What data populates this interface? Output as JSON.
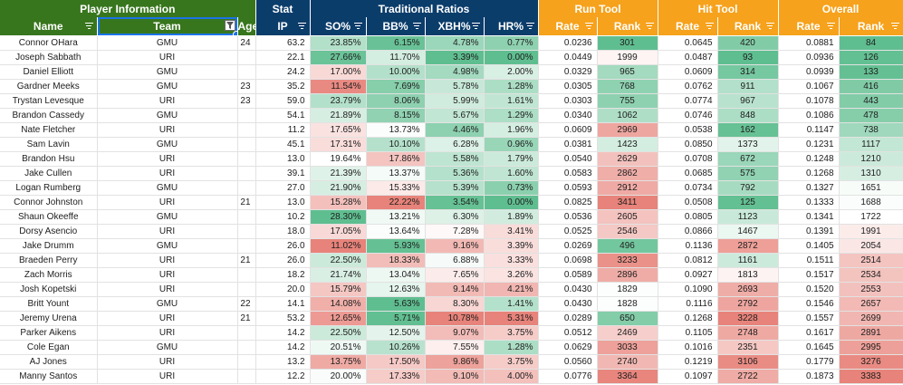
{
  "groups": {
    "player": "Player Information",
    "stat": "Stat",
    "trad": "Traditional Ratios",
    "run": "Run Tool",
    "hit": "Hit Tool",
    "overall": "Overall"
  },
  "columns": [
    "Name",
    "Team",
    "Age",
    "IP",
    "SO%",
    "BB%",
    "XBH%",
    "HR%",
    "Rate",
    "Rank",
    "Rate",
    "Rank",
    "Rate",
    "Rank"
  ],
  "colors": {
    "player_header": "#38761d",
    "stat_header": "#0b3d6b",
    "tool_header": "#f6a21c",
    "good": "#57bb8a",
    "bad": "#e67c73",
    "selection": "#1a73e8"
  },
  "icons": {
    "filter": "filter-icon",
    "active_filter": "active-filter-icon"
  },
  "rows": [
    {
      "name": "Connor OHara",
      "team": "GMU",
      "age": "24",
      "ip": "63.2",
      "so": "23.85%",
      "bb": "6.15%",
      "xbh": "4.78%",
      "hr": "0.77%",
      "run_rate": "0.0236",
      "run_rank": "301",
      "hit_rate": "0.0645",
      "hit_rank": "420",
      "ovr_rate": "0.0881",
      "ovr_rank": "84"
    },
    {
      "name": "Joseph Sabbath",
      "team": "URI",
      "age": "",
      "ip": "22.1",
      "so": "27.66%",
      "bb": "11.70%",
      "xbh": "3.39%",
      "hr": "0.00%",
      "run_rate": "0.0449",
      "run_rank": "1999",
      "hit_rate": "0.0487",
      "hit_rank": "93",
      "ovr_rate": "0.0936",
      "ovr_rank": "126"
    },
    {
      "name": "Daniel Elliott",
      "team": "GMU",
      "age": "",
      "ip": "24.2",
      "so": "17.00%",
      "bb": "10.00%",
      "xbh": "4.98%",
      "hr": "2.00%",
      "run_rate": "0.0329",
      "run_rank": "965",
      "hit_rate": "0.0609",
      "hit_rank": "314",
      "ovr_rate": "0.0939",
      "ovr_rank": "133"
    },
    {
      "name": "Gardner Meeks",
      "team": "GMU",
      "age": "23",
      "ip": "35.2",
      "so": "11.54%",
      "bb": "7.69%",
      "xbh": "5.78%",
      "hr": "1.28%",
      "run_rate": "0.0305",
      "run_rank": "768",
      "hit_rate": "0.0762",
      "hit_rank": "911",
      "ovr_rate": "0.1067",
      "ovr_rank": "416"
    },
    {
      "name": "Trystan Levesque",
      "team": "URI",
      "age": "23",
      "ip": "59.0",
      "so": "23.79%",
      "bb": "8.06%",
      "xbh": "5.99%",
      "hr": "1.61%",
      "run_rate": "0.0303",
      "run_rank": "755",
      "hit_rate": "0.0774",
      "hit_rank": "967",
      "ovr_rate": "0.1078",
      "ovr_rank": "443"
    },
    {
      "name": "Brandon Cassedy",
      "team": "GMU",
      "age": "",
      "ip": "54.1",
      "so": "21.89%",
      "bb": "8.15%",
      "xbh": "5.67%",
      "hr": "1.29%",
      "run_rate": "0.0340",
      "run_rank": "1062",
      "hit_rate": "0.0746",
      "hit_rank": "848",
      "ovr_rate": "0.1086",
      "ovr_rank": "478"
    },
    {
      "name": "Nate Fletcher",
      "team": "URI",
      "age": "",
      "ip": "11.2",
      "so": "17.65%",
      "bb": "13.73%",
      "xbh": "4.46%",
      "hr": "1.96%",
      "run_rate": "0.0609",
      "run_rank": "2969",
      "hit_rate": "0.0538",
      "hit_rank": "162",
      "ovr_rate": "0.1147",
      "ovr_rank": "738"
    },
    {
      "name": "Sam Lavin",
      "team": "GMU",
      "age": "",
      "ip": "45.1",
      "so": "17.31%",
      "bb": "10.10%",
      "xbh": "6.28%",
      "hr": "0.96%",
      "run_rate": "0.0381",
      "run_rank": "1423",
      "hit_rate": "0.0850",
      "hit_rank": "1373",
      "ovr_rate": "0.1231",
      "ovr_rank": "1117"
    },
    {
      "name": "Brandon Hsu",
      "team": "URI",
      "age": "",
      "ip": "13.0",
      "so": "19.64%",
      "bb": "17.86%",
      "xbh": "5.58%",
      "hr": "1.79%",
      "run_rate": "0.0540",
      "run_rank": "2629",
      "hit_rate": "0.0708",
      "hit_rank": "672",
      "ovr_rate": "0.1248",
      "ovr_rank": "1210"
    },
    {
      "name": "Jake Cullen",
      "team": "URI",
      "age": "",
      "ip": "39.1",
      "so": "21.39%",
      "bb": "13.37%",
      "xbh": "5.36%",
      "hr": "1.60%",
      "run_rate": "0.0583",
      "run_rank": "2862",
      "hit_rate": "0.0685",
      "hit_rank": "575",
      "ovr_rate": "0.1268",
      "ovr_rank": "1310"
    },
    {
      "name": "Logan Rumberg",
      "team": "GMU",
      "age": "",
      "ip": "27.0",
      "so": "21.90%",
      "bb": "15.33%",
      "xbh": "5.39%",
      "hr": "0.73%",
      "run_rate": "0.0593",
      "run_rank": "2912",
      "hit_rate": "0.0734",
      "hit_rank": "792",
      "ovr_rate": "0.1327",
      "ovr_rank": "1651"
    },
    {
      "name": "Connor Johnston",
      "team": "URI",
      "age": "21",
      "ip": "13.0",
      "so": "15.28%",
      "bb": "22.22%",
      "xbh": "3.54%",
      "hr": "0.00%",
      "run_rate": "0.0825",
      "run_rank": "3411",
      "hit_rate": "0.0508",
      "hit_rank": "125",
      "ovr_rate": "0.1333",
      "ovr_rank": "1688"
    },
    {
      "name": "Shaun Okeeffe",
      "team": "GMU",
      "age": "",
      "ip": "10.2",
      "so": "28.30%",
      "bb": "13.21%",
      "xbh": "6.30%",
      "hr": "1.89%",
      "run_rate": "0.0536",
      "run_rank": "2605",
      "hit_rate": "0.0805",
      "hit_rank": "1123",
      "ovr_rate": "0.1341",
      "ovr_rank": "1722"
    },
    {
      "name": "Dorsy Asencio",
      "team": "URI",
      "age": "",
      "ip": "18.0",
      "so": "17.05%",
      "bb": "13.64%",
      "xbh": "7.28%",
      "hr": "3.41%",
      "run_rate": "0.0525",
      "run_rank": "2546",
      "hit_rate": "0.0866",
      "hit_rank": "1467",
      "ovr_rate": "0.1391",
      "ovr_rank": "1991"
    },
    {
      "name": "Jake Drumm",
      "team": "GMU",
      "age": "",
      "ip": "26.0",
      "so": "11.02%",
      "bb": "5.93%",
      "xbh": "9.16%",
      "hr": "3.39%",
      "run_rate": "0.0269",
      "run_rank": "496",
      "hit_rate": "0.1136",
      "hit_rank": "2872",
      "ovr_rate": "0.1405",
      "ovr_rank": "2054"
    },
    {
      "name": "Braeden Perry",
      "team": "URI",
      "age": "21",
      "ip": "26.0",
      "so": "22.50%",
      "bb": "18.33%",
      "xbh": "6.88%",
      "hr": "3.33%",
      "run_rate": "0.0698",
      "run_rank": "3233",
      "hit_rate": "0.0812",
      "hit_rank": "1161",
      "ovr_rate": "0.1511",
      "ovr_rank": "2514"
    },
    {
      "name": "Zach Morris",
      "team": "URI",
      "age": "",
      "ip": "18.2",
      "so": "21.74%",
      "bb": "13.04%",
      "xbh": "7.65%",
      "hr": "3.26%",
      "run_rate": "0.0589",
      "run_rank": "2896",
      "hit_rate": "0.0927",
      "hit_rank": "1813",
      "ovr_rate": "0.1517",
      "ovr_rank": "2534"
    },
    {
      "name": "Josh Kopetski",
      "team": "URI",
      "age": "",
      "ip": "20.0",
      "so": "15.79%",
      "bb": "12.63%",
      "xbh": "9.14%",
      "hr": "4.21%",
      "run_rate": "0.0430",
      "run_rank": "1829",
      "hit_rate": "0.1090",
      "hit_rank": "2693",
      "ovr_rate": "0.1520",
      "ovr_rank": "2553"
    },
    {
      "name": "Britt Yount",
      "team": "GMU",
      "age": "22",
      "ip": "14.1",
      "so": "14.08%",
      "bb": "5.63%",
      "xbh": "8.30%",
      "hr": "1.41%",
      "run_rate": "0.0430",
      "run_rank": "1828",
      "hit_rate": "0.1116",
      "hit_rank": "2792",
      "ovr_rate": "0.1546",
      "ovr_rank": "2657"
    },
    {
      "name": "Jeremy Urena",
      "team": "URI",
      "age": "21",
      "ip": "53.2",
      "so": "12.65%",
      "bb": "5.71%",
      "xbh": "10.78%",
      "hr": "5.31%",
      "run_rate": "0.0289",
      "run_rank": "650",
      "hit_rate": "0.1268",
      "hit_rank": "3228",
      "ovr_rate": "0.1557",
      "ovr_rank": "2699"
    },
    {
      "name": "Parker Aikens",
      "team": "URI",
      "age": "",
      "ip": "14.2",
      "so": "22.50%",
      "bb": "12.50%",
      "xbh": "9.07%",
      "hr": "3.75%",
      "run_rate": "0.0512",
      "run_rank": "2469",
      "hit_rate": "0.1105",
      "hit_rank": "2748",
      "ovr_rate": "0.1617",
      "ovr_rank": "2891"
    },
    {
      "name": "Cole Egan",
      "team": "GMU",
      "age": "",
      "ip": "14.2",
      "so": "20.51%",
      "bb": "10.26%",
      "xbh": "7.55%",
      "hr": "1.28%",
      "run_rate": "0.0629",
      "run_rank": "3033",
      "hit_rate": "0.1016",
      "hit_rank": "2351",
      "ovr_rate": "0.1645",
      "ovr_rank": "2995"
    },
    {
      "name": "AJ Jones",
      "team": "URI",
      "age": "",
      "ip": "13.2",
      "so": "13.75%",
      "bb": "17.50%",
      "xbh": "9.86%",
      "hr": "3.75%",
      "run_rate": "0.0560",
      "run_rank": "2740",
      "hit_rate": "0.1219",
      "hit_rank": "3106",
      "ovr_rate": "0.1779",
      "ovr_rank": "3276"
    },
    {
      "name": "Manny Santos",
      "team": "URI",
      "age": "",
      "ip": "12.2",
      "so": "20.00%",
      "bb": "17.33%",
      "xbh": "9.10%",
      "hr": "4.00%",
      "run_rate": "0.0776",
      "run_rank": "3364",
      "hit_rate": "0.1097",
      "hit_rank": "2722",
      "ovr_rate": "0.1873",
      "ovr_rank": "3383"
    }
  ]
}
